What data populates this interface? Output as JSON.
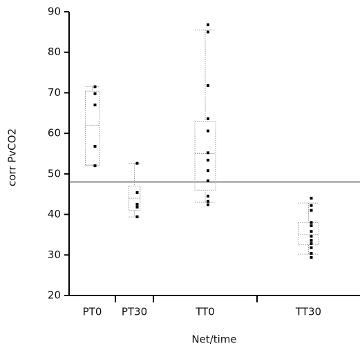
{
  "chart_data": {
    "type": "box",
    "x_label": "Net/time",
    "y_label": "corr PvCO2",
    "categories": [
      "PT0",
      "PT30",
      "TT0",
      "TT30"
    ],
    "points": [
      [
        71.5,
        69.8,
        67.0,
        56.8,
        52.0
      ],
      [
        52.6,
        45.4,
        42.5,
        41.8,
        39.4
      ],
      [
        86.8,
        85.0,
        71.8,
        63.6,
        60.6,
        55.2,
        53.4,
        50.8,
        48.3,
        44.5,
        43.2,
        42.4
      ],
      [
        44.0,
        42.2,
        41.0,
        38.0,
        37.2,
        35.8,
        34.6,
        33.6,
        32.8,
        31.8,
        30.4,
        29.4
      ]
    ],
    "boxes": [
      {
        "whisker_low": 52.0,
        "q1": 52.2,
        "median": 62.0,
        "q3": 70.4,
        "whisker_high": 71.5
      },
      {
        "whisker_low": 39.4,
        "q1": 41.0,
        "median": 44.0,
        "q3": 47.0,
        "whisker_high": 52.6
      },
      {
        "whisker_low": 43.0,
        "q1": 46.0,
        "median": 55.0,
        "q3": 63.0,
        "whisker_high": 85.5
      },
      {
        "whisker_low": 30.2,
        "q1": 32.5,
        "median": 35.0,
        "q3": 38.0,
        "whisker_high": 42.8
      }
    ],
    "reference_line": 48,
    "ylim": [
      20,
      90
    ],
    "yticks": [
      20,
      30,
      40,
      50,
      60,
      70,
      80,
      90
    ],
    "point_color": "#000000",
    "box_color": "#999999"
  }
}
